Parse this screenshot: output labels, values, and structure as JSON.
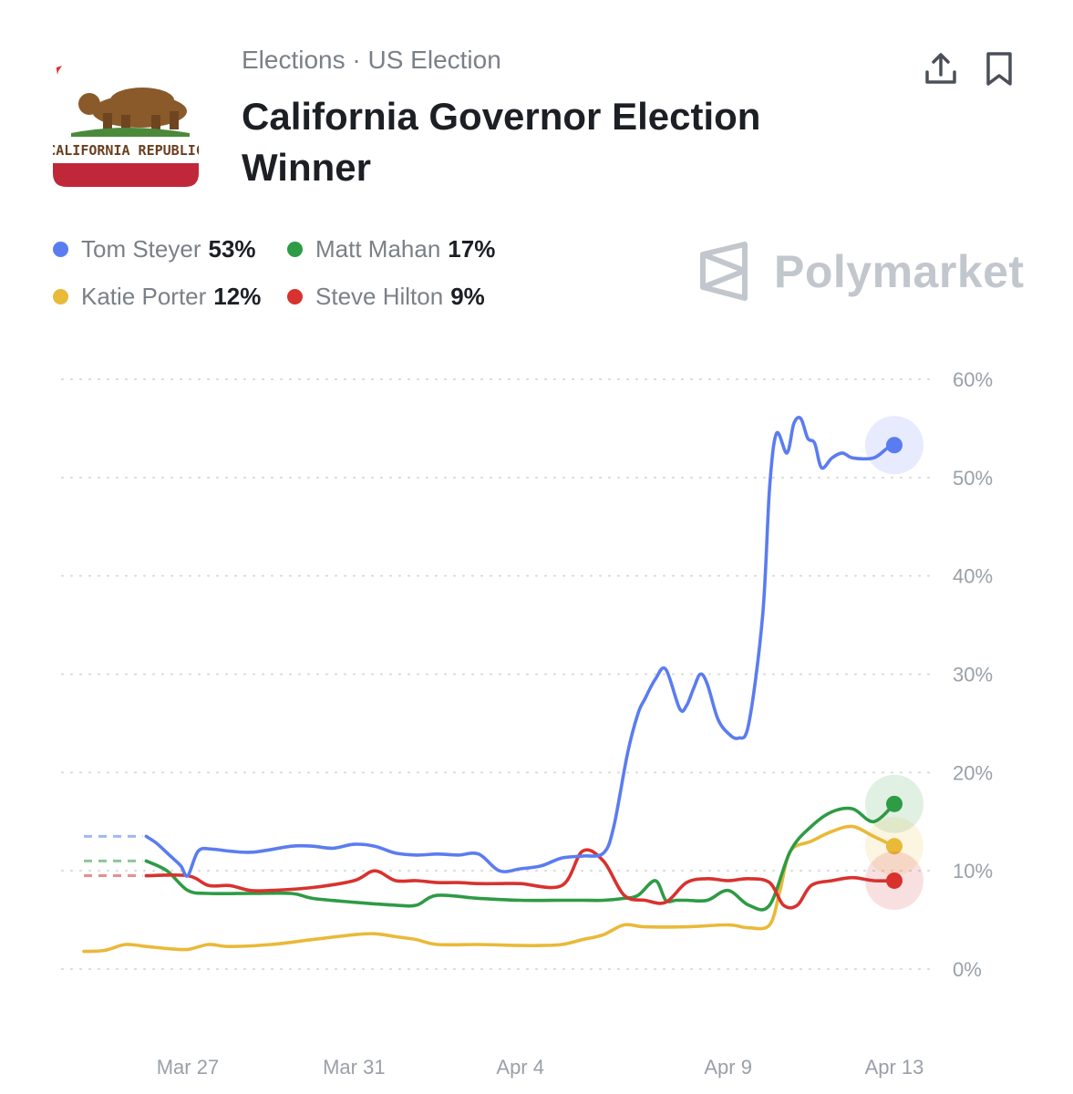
{
  "header": {
    "breadcrumb": "Elections · US Election",
    "title": "California Governor Election Winner",
    "flag_text": "CALIFORNIA REPUBLIC",
    "share_icon": "upload-share-icon",
    "bookmark_icon": "bookmark-icon"
  },
  "legend": [
    {
      "name": "Tom Steyer",
      "value": "53%",
      "color": "#5b7cf0"
    },
    {
      "name": "Matt Mahan",
      "value": "17%",
      "color": "#2e9b45"
    },
    {
      "name": "Katie Porter",
      "value": "12%",
      "color": "#e9b938"
    },
    {
      "name": "Steve Hilton",
      "value": "9%",
      "color": "#d8322f"
    }
  ],
  "brand": {
    "name": "Polymarket",
    "color": "#c2c7ce"
  },
  "chart_data": {
    "type": "line",
    "x_tick_labels": [
      "Mar 27",
      "Mar 31",
      "Apr 4",
      "Apr 9",
      "Apr 13"
    ],
    "y_tick_labels": [
      "60%",
      "50%",
      "40%",
      "30%",
      "20%",
      "10%",
      "0%"
    ],
    "ylim": [
      0,
      60
    ],
    "xlim": [
      "2025-03-24T12:00",
      "2025-04-13T00:00"
    ],
    "grid": "horizontal-dotted",
    "y_axis_position": "right",
    "series": [
      {
        "name": "Tom Steyer",
        "color": "#5b7cf0",
        "prior_level": 13.5,
        "end_marker": true,
        "x": [
          "2025-03-26T00:00",
          "2025-03-26T06:00",
          "2025-03-26T14:00",
          "2025-03-26T20:00",
          "2025-03-27T00:00",
          "2025-03-27T06:00",
          "2025-03-27T14:00",
          "2025-03-28T00:00",
          "2025-03-28T14:00",
          "2025-03-29T12:00",
          "2025-03-30T00:00",
          "2025-03-30T12:00",
          "2025-03-31T00:00",
          "2025-03-31T12:00",
          "2025-04-01T00:00",
          "2025-04-01T12:00",
          "2025-04-02T00:00",
          "2025-04-02T12:00",
          "2025-04-03T00:00",
          "2025-04-03T12:00",
          "2025-04-04T00:00",
          "2025-04-04T12:00",
          "2025-04-05T00:00",
          "2025-04-05T12:00",
          "2025-04-06T00:00",
          "2025-04-06T06:00",
          "2025-04-06T14:00",
          "2025-04-06T20:00",
          "2025-04-07T00:00",
          "2025-04-07T06:00",
          "2025-04-07T12:00",
          "2025-04-07T20:00",
          "2025-04-08T00:00",
          "2025-04-08T04:00",
          "2025-04-08T08:00",
          "2025-04-08T12:00",
          "2025-04-08T18:00",
          "2025-04-09T00:00",
          "2025-04-09T06:00",
          "2025-04-09T12:00",
          "2025-04-09T20:00",
          "2025-04-10T00:00",
          "2025-04-10T04:00",
          "2025-04-10T10:00",
          "2025-04-10T14:00",
          "2025-04-10T18:00",
          "2025-04-10T22:00",
          "2025-04-11T02:00",
          "2025-04-11T06:00",
          "2025-04-11T12:00",
          "2025-04-11T18:00",
          "2025-04-12T00:00",
          "2025-04-12T12:00",
          "2025-04-12T20:00",
          "2025-04-13T00:00"
        ],
        "values": [
          13.5,
          12.8,
          11.5,
          10.5,
          9.5,
          12.0,
          12.2,
          12.0,
          11.9,
          12.5,
          12.5,
          12.3,
          12.7,
          12.5,
          11.8,
          11.6,
          11.7,
          11.6,
          11.7,
          10.0,
          10.2,
          10.5,
          11.3,
          11.5,
          11.8,
          14.5,
          22.0,
          26.0,
          27.5,
          29.5,
          30.5,
          26.5,
          26.8,
          28.5,
          30.0,
          29.0,
          25.5,
          24.0,
          23.5,
          25.0,
          36.0,
          49.0,
          54.5,
          52.5,
          55.5,
          56.0,
          54.0,
          53.5,
          51.0,
          52.0,
          52.5,
          52.0,
          52.0,
          53.0,
          53.3
        ]
      },
      {
        "name": "Matt Mahan",
        "color": "#2e9b45",
        "prior_level": 11.0,
        "end_marker": true,
        "x": [
          "2025-03-26T00:00",
          "2025-03-26T12:00",
          "2025-03-27T00:00",
          "2025-03-27T12:00",
          "2025-03-28T12:00",
          "2025-03-29T12:00",
          "2025-03-30T00:00",
          "2025-03-31T00:00",
          "2025-04-01T00:00",
          "2025-04-01T12:00",
          "2025-04-02T00:00",
          "2025-04-03T00:00",
          "2025-04-04T00:00",
          "2025-04-05T00:00",
          "2025-04-05T12:00",
          "2025-04-06T00:00",
          "2025-04-06T12:00",
          "2025-04-06T20:00",
          "2025-04-07T06:00",
          "2025-04-07T12:00",
          "2025-04-07T18:00",
          "2025-04-08T00:00",
          "2025-04-08T12:00",
          "2025-04-09T00:00",
          "2025-04-09T12:00",
          "2025-04-10T00:00",
          "2025-04-10T12:00",
          "2025-04-11T00:00",
          "2025-04-11T12:00",
          "2025-04-12T00:00",
          "2025-04-12T12:00",
          "2025-04-13T00:00"
        ],
        "values": [
          11.0,
          10.0,
          8.0,
          7.7,
          7.7,
          7.7,
          7.2,
          6.8,
          6.5,
          6.5,
          7.5,
          7.2,
          7.0,
          7.0,
          7.0,
          7.0,
          7.2,
          7.5,
          9.0,
          7.0,
          7.0,
          7.0,
          7.0,
          8.0,
          6.5,
          6.5,
          12.0,
          14.5,
          16.0,
          16.3,
          15.0,
          16.8
        ]
      },
      {
        "name": "Katie Porter",
        "color": "#e9b938",
        "prior_level": null,
        "end_marker": true,
        "x": [
          "2025-03-24T12:00",
          "2025-03-25T00:00",
          "2025-03-25T12:00",
          "2025-03-26T00:00",
          "2025-03-26T12:00",
          "2025-03-27T00:00",
          "2025-03-27T12:00",
          "2025-03-28T00:00",
          "2025-03-29T00:00",
          "2025-03-30T00:00",
          "2025-03-31T00:00",
          "2025-03-31T12:00",
          "2025-04-01T00:00",
          "2025-04-01T12:00",
          "2025-04-02T00:00",
          "2025-04-03T00:00",
          "2025-04-04T00:00",
          "2025-04-04T12:00",
          "2025-04-05T00:00",
          "2025-04-05T12:00",
          "2025-04-06T00:00",
          "2025-04-06T12:00",
          "2025-04-07T00:00",
          "2025-04-08T00:00",
          "2025-04-09T00:00",
          "2025-04-09T12:00",
          "2025-04-10T00:00",
          "2025-04-10T06:00",
          "2025-04-10T12:00",
          "2025-04-11T00:00",
          "2025-04-11T12:00",
          "2025-04-12T00:00",
          "2025-04-12T12:00",
          "2025-04-13T00:00"
        ],
        "values": [
          1.8,
          1.9,
          2.5,
          2.3,
          2.1,
          2.0,
          2.5,
          2.3,
          2.5,
          3.0,
          3.5,
          3.6,
          3.3,
          3.0,
          2.5,
          2.5,
          2.4,
          2.4,
          2.5,
          3.0,
          3.5,
          4.5,
          4.3,
          4.3,
          4.5,
          4.2,
          4.5,
          8.0,
          12.0,
          13.0,
          14.0,
          14.5,
          13.5,
          12.5
        ]
      },
      {
        "name": "Steve Hilton",
        "color": "#d8322f",
        "prior_level": 9.5,
        "end_marker": true,
        "x": [
          "2025-03-26T00:00",
          "2025-03-27T00:00",
          "2025-03-27T12:00",
          "2025-03-28T00:00",
          "2025-03-28T12:00",
          "2025-03-29T00:00",
          "2025-03-30T00:00",
          "2025-03-31T00:00",
          "2025-03-31T12:00",
          "2025-04-01T00:00",
          "2025-04-01T12:00",
          "2025-04-02T00:00",
          "2025-04-02T12:00",
          "2025-04-03T00:00",
          "2025-04-03T12:00",
          "2025-04-04T00:00",
          "2025-04-05T00:00",
          "2025-04-05T12:00",
          "2025-04-06T00:00",
          "2025-04-06T12:00",
          "2025-04-07T00:00",
          "2025-04-07T12:00",
          "2025-04-08T00:00",
          "2025-04-08T12:00",
          "2025-04-09T00:00",
          "2025-04-09T12:00",
          "2025-04-10T00:00",
          "2025-04-10T08:00",
          "2025-04-10T16:00",
          "2025-04-11T00:00",
          "2025-04-11T12:00",
          "2025-04-12T00:00",
          "2025-04-12T12:00",
          "2025-04-13T00:00"
        ],
        "values": [
          9.5,
          9.5,
          8.5,
          8.5,
          8.0,
          8.0,
          8.3,
          9.0,
          10.0,
          9.0,
          9.0,
          8.8,
          8.8,
          8.7,
          8.7,
          8.7,
          8.5,
          12.0,
          11.0,
          7.5,
          7.0,
          6.8,
          8.8,
          9.2,
          9.0,
          9.2,
          8.8,
          6.5,
          6.5,
          8.5,
          9.0,
          9.3,
          9.0,
          9.0
        ]
      }
    ]
  }
}
